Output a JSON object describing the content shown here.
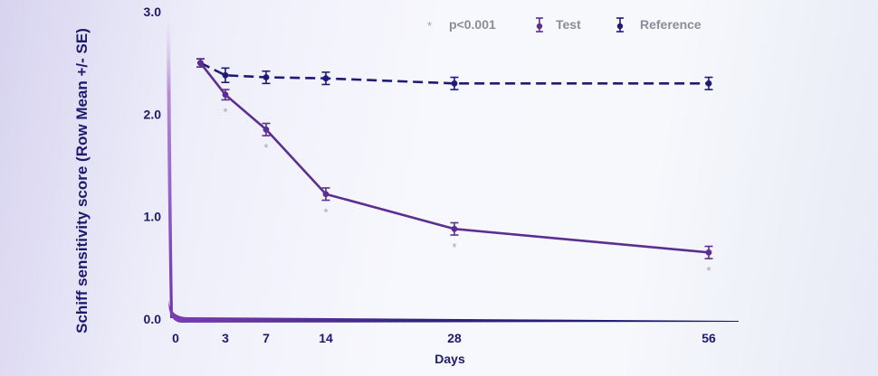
{
  "chart_data": {
    "type": "line",
    "ylabel": "Schiff sensitivity score (Row Mean +/- SE)",
    "xlabel": "Days",
    "ylim": [
      0,
      3
    ],
    "yticks": [
      "0.0",
      "1.0",
      "2.0",
      "3.0"
    ],
    "ytick_values": [
      0,
      1,
      2,
      3
    ],
    "xticks": [
      "0",
      "3",
      "7",
      "14",
      "28",
      "56"
    ],
    "xtick_values": [
      0,
      3,
      7,
      14,
      28,
      56
    ],
    "grid": false,
    "legend_position": "top-right",
    "legend": {
      "significance_marker": "*",
      "significance_label": "p<0.001"
    },
    "series": [
      {
        "name": "Test",
        "color": "#5c2e91",
        "line_style": "solid",
        "x": [
          1.5,
          3,
          7,
          14,
          28,
          56
        ],
        "y": [
          2.5,
          2.19,
          1.85,
          1.22,
          0.88,
          0.65
        ],
        "error": [
          0.04,
          0.05,
          0.06,
          0.06,
          0.06,
          0.06
        ],
        "significant": [
          false,
          true,
          true,
          true,
          true,
          true
        ]
      },
      {
        "name": "Reference",
        "color": "#1f1a78",
        "line_style": "dashed",
        "x": [
          1.5,
          3,
          7,
          14,
          28,
          56
        ],
        "y": [
          2.5,
          2.38,
          2.36,
          2.35,
          2.3,
          2.3
        ],
        "error": [
          0.04,
          0.07,
          0.06,
          0.06,
          0.06,
          0.06
        ]
      }
    ]
  }
}
